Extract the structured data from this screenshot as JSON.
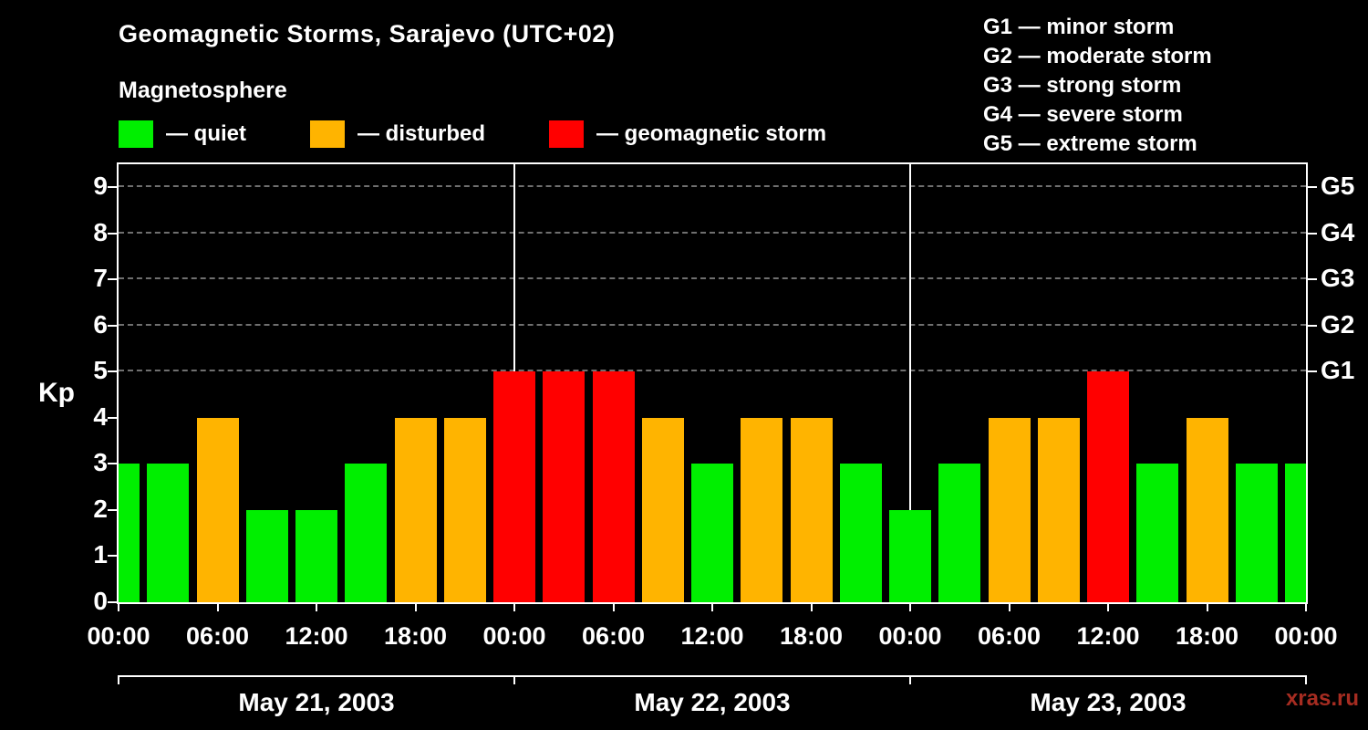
{
  "title": "Geomagnetic Storms, Sarajevo (UTC+02)",
  "legend": {
    "heading": "Magnetosphere",
    "items": [
      {
        "key": "quiet",
        "label": "— quiet",
        "color": "#00ef00"
      },
      {
        "key": "disturbed",
        "label": "— disturbed",
        "color": "#ffb400"
      },
      {
        "key": "storm",
        "label": "— geomagnetic storm",
        "color": "#ff0000"
      }
    ]
  },
  "g_legend": [
    "G1 — minor storm",
    "G2 — moderate storm",
    "G3 — strong storm",
    "G4 — severe storm",
    "G5 — extreme storm"
  ],
  "watermark": {
    "text": "xras.ru",
    "color": "#a62c21"
  },
  "chart_data": {
    "type": "bar",
    "title": "Geomagnetic Storms, Sarajevo (UTC+02)",
    "ylabel": "Kp",
    "ylim": [
      0,
      9.5
    ],
    "yticks": [
      0,
      1,
      2,
      3,
      4,
      5,
      6,
      7,
      8,
      9
    ],
    "gridlines_kp": [
      5,
      6,
      7,
      8,
      9
    ],
    "right_axis_labels": [
      {
        "kp": 5,
        "label": "G1"
      },
      {
        "kp": 6,
        "label": "G2"
      },
      {
        "kp": 7,
        "label": "G3"
      },
      {
        "kp": 8,
        "label": "G4"
      },
      {
        "kp": 9,
        "label": "G5"
      }
    ],
    "x_tick_labels": [
      "00:00",
      "06:00",
      "12:00",
      "18:00",
      "00:00",
      "06:00",
      "12:00",
      "18:00",
      "00:00",
      "06:00",
      "12:00",
      "18:00",
      "00:00"
    ],
    "hours_per_bar": 3,
    "days": [
      {
        "date": "May 21, 2003",
        "kp": [
          3,
          3,
          4,
          2,
          2,
          3,
          4,
          4
        ]
      },
      {
        "date": "May 22, 2003",
        "kp": [
          5,
          5,
          5,
          4,
          3,
          4,
          4,
          3
        ]
      },
      {
        "date": "May 23, 2003",
        "kp": [
          2,
          3,
          4,
          4,
          5,
          3,
          4,
          3
        ]
      }
    ],
    "next_midnight_kp": 3,
    "colors": {
      "quiet": "#00ef00",
      "disturbed": "#ffb400",
      "storm": "#ff0000"
    },
    "color_thresholds": {
      "quiet_max": 3,
      "disturbed_max": 4
    },
    "legend_position": "top",
    "grid": "dashed horizontal at G-storm levels only"
  }
}
